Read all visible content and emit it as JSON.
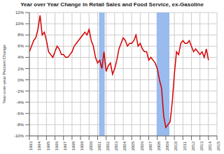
{
  "chart_data": {
    "type": "line",
    "title": "Year over Year Change in Retail Sales and Food Service, ex-Gasoline",
    "y_label": "Year-over-year Percent Change",
    "x": [
      1993,
      1993.25,
      1993.5,
      1993.75,
      1994,
      1994.25,
      1994.5,
      1994.75,
      1995,
      1995.25,
      1995.5,
      1995.75,
      1996,
      1996.25,
      1996.5,
      1996.75,
      1997,
      1997.25,
      1997.5,
      1997.75,
      1998,
      1998.25,
      1998.5,
      1998.75,
      1999,
      1999.25,
      1999.5,
      1999.75,
      2000,
      2000.25,
      2000.5,
      2000.75,
      2001,
      2001.25,
      2001.5,
      2001.75,
      2002,
      2002.25,
      2002.5,
      2002.75,
      2003,
      2003.25,
      2003.5,
      2003.75,
      2004,
      2004.25,
      2004.5,
      2004.75,
      2005,
      2005.25,
      2005.5,
      2005.75,
      2006,
      2006.25,
      2006.5,
      2006.75,
      2007,
      2007.25,
      2007.5,
      2007.75,
      2008,
      2008.25,
      2008.5,
      2008.75,
      2009,
      2009.25,
      2009.5,
      2009.75,
      2010,
      2010.25,
      2010.5,
      2010.75,
      2011,
      2011.25,
      2011.5,
      2011.75,
      2012,
      2012.25,
      2012.5,
      2012.75,
      2013,
      2013.25,
      2013.5,
      2013.75,
      2014
    ],
    "series": [
      {
        "name": "Retail Sales and Food Service, ex-Gasoline",
        "color": "#d40000",
        "values": [
          5,
          6,
          7,
          7.5,
          9,
          11.5,
          8,
          8.5,
          7,
          5,
          4.5,
          4,
          5,
          6,
          5.5,
          4.5,
          4.5,
          4,
          4,
          4.5,
          5,
          6,
          6.5,
          7,
          7.5,
          8,
          8.5,
          8,
          9,
          7,
          6,
          4,
          3,
          3.5,
          2,
          5,
          1.5,
          2.5,
          3,
          1,
          2,
          3.5,
          5.5,
          6.5,
          7.5,
          7,
          6,
          6.5,
          6.5,
          7,
          8,
          6,
          6.5,
          5.5,
          5,
          5,
          3.5,
          4,
          3.5,
          3,
          2,
          0,
          -1.5,
          -6.5,
          -8.5,
          -8,
          -7.5,
          -4,
          1,
          5,
          4.5,
          6.5,
          7,
          6.5,
          6.5,
          7,
          6,
          5,
          5.5,
          5,
          4.5,
          5,
          4,
          5.5,
          3.5
        ]
      }
    ],
    "recessions": [
      [
        2001.17,
        2001.83
      ],
      [
        2007.92,
        2009.42
      ]
    ],
    "recession_color": "#99bbee",
    "xlim": [
      1993,
      2015
    ],
    "xticks": [
      1993,
      1994,
      1995,
      1996,
      1997,
      1998,
      1999,
      2000,
      2001,
      2002,
      2003,
      2004,
      2005,
      2006,
      2007,
      2008,
      2009,
      2010,
      2011,
      2012,
      2013,
      2014,
      2015
    ],
    "ylim": [
      -10,
      12
    ],
    "yticks": [
      {
        "value": -10,
        "label": "-10%"
      },
      {
        "value": -8,
        "label": "-8%"
      },
      {
        "value": -6,
        "label": "-6%"
      },
      {
        "value": -4,
        "label": "-4%"
      },
      {
        "value": -2,
        "label": "-2%"
      },
      {
        "value": 0,
        "label": "0%"
      },
      {
        "value": 2,
        "label": "2%"
      },
      {
        "value": 4,
        "label": "4%"
      },
      {
        "value": 6,
        "label": "6%"
      },
      {
        "value": 8,
        "label": "8%"
      },
      {
        "value": 10,
        "label": "10%"
      },
      {
        "value": 12,
        "label": "12%"
      }
    ],
    "grid": true
  }
}
